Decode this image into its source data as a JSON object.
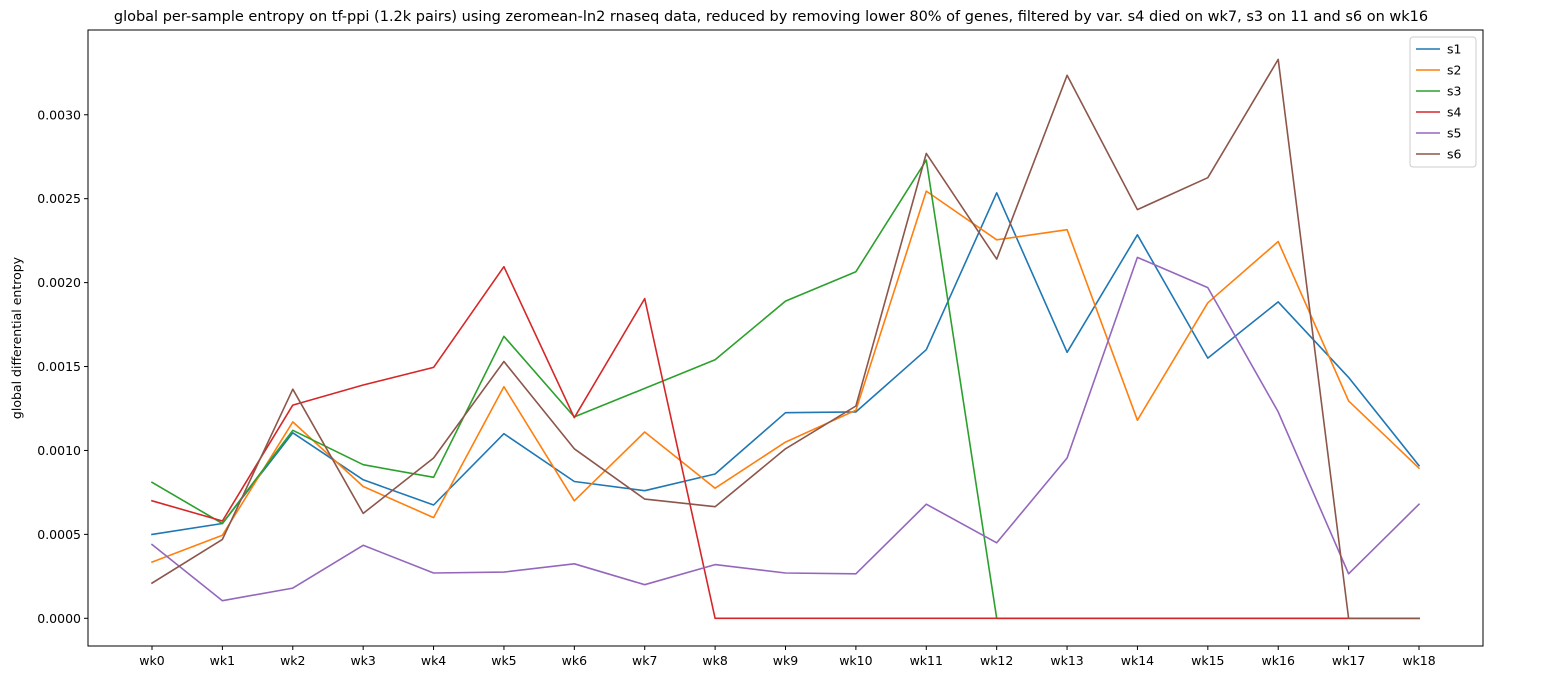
{
  "chart_data": {
    "type": "line",
    "title": "global per-sample entropy on tf-ppi (1.2k pairs) using zeromean-ln2 rnaseq data, reduced by removing lower 80% of genes, filtered by var. s4 died on wk7, s3 on 11 and s6 on wk16",
    "xlabel": "",
    "ylabel": "global differential entropy",
    "categories": [
      "wk0",
      "wk1",
      "wk2",
      "wk3",
      "wk4",
      "wk5",
      "wk6",
      "wk7",
      "wk8",
      "wk9",
      "wk10",
      "wk11",
      "wk12",
      "wk13",
      "wk14",
      "wk15",
      "wk16",
      "wk17",
      "wk18"
    ],
    "ylim": [
      -0.000165,
      0.003505
    ],
    "yticks": [
      "0.0000",
      "0.0005",
      "0.0010",
      "0.0015",
      "0.0020",
      "0.0025",
      "0.0030"
    ],
    "ytick_values": [
      0,
      0.0005,
      0.001,
      0.0015,
      0.002,
      0.0025,
      0.003
    ],
    "grid": false,
    "legend_position": "top-right",
    "series": [
      {
        "name": "s1",
        "color": "#1f77b4",
        "values": [
          0.0005,
          0.000565,
          0.001105,
          0.000825,
          0.000675,
          0.0011,
          0.000815,
          0.00076,
          0.00086,
          0.001225,
          0.00123,
          0.0016,
          0.002535,
          0.001585,
          0.002285,
          0.00155,
          0.001885,
          0.001435,
          0.00091
        ]
      },
      {
        "name": "s2",
        "color": "#ff7f0e",
        "values": [
          0.000335,
          0.000495,
          0.00117,
          0.000785,
          0.0006,
          0.00138,
          0.0007,
          0.00111,
          0.000775,
          0.00105,
          0.00124,
          0.002545,
          0.002255,
          0.002315,
          0.00118,
          0.00188,
          0.002245,
          0.001295,
          0.000895
        ]
      },
      {
        "name": "s3",
        "color": "#2ca02c",
        "values": [
          0.00081,
          0.000565,
          0.00112,
          0.000915,
          0.00084,
          0.00168,
          0.0012,
          0.00137,
          0.00154,
          0.00189,
          0.002065,
          0.00273,
          0,
          0,
          0,
          0,
          0,
          0,
          0
        ]
      },
      {
        "name": "s4",
        "color": "#d62728",
        "values": [
          0.0007,
          0.00058,
          0.00127,
          0.00139,
          0.001495,
          0.002095,
          0.001195,
          0.001905,
          0,
          0,
          0,
          0,
          0,
          0,
          0,
          0,
          0,
          0,
          0
        ]
      },
      {
        "name": "s5",
        "color": "#9467bd",
        "values": [
          0.00044,
          0.000105,
          0.00018,
          0.000435,
          0.00027,
          0.000275,
          0.000325,
          0.0002,
          0.00032,
          0.00027,
          0.000265,
          0.00068,
          0.00045,
          0.000955,
          0.00215,
          0.00197,
          0.00123,
          0.000265,
          0.00068
        ]
      },
      {
        "name": "s6",
        "color": "#8c564b",
        "values": [
          0.00021,
          0.00047,
          0.001365,
          0.000625,
          0.000955,
          0.00153,
          0.00101,
          0.00071,
          0.000665,
          0.00101,
          0.001265,
          0.00277,
          0.00214,
          0.003235,
          0.002435,
          0.002625,
          0.00333,
          0,
          0
        ]
      }
    ]
  }
}
